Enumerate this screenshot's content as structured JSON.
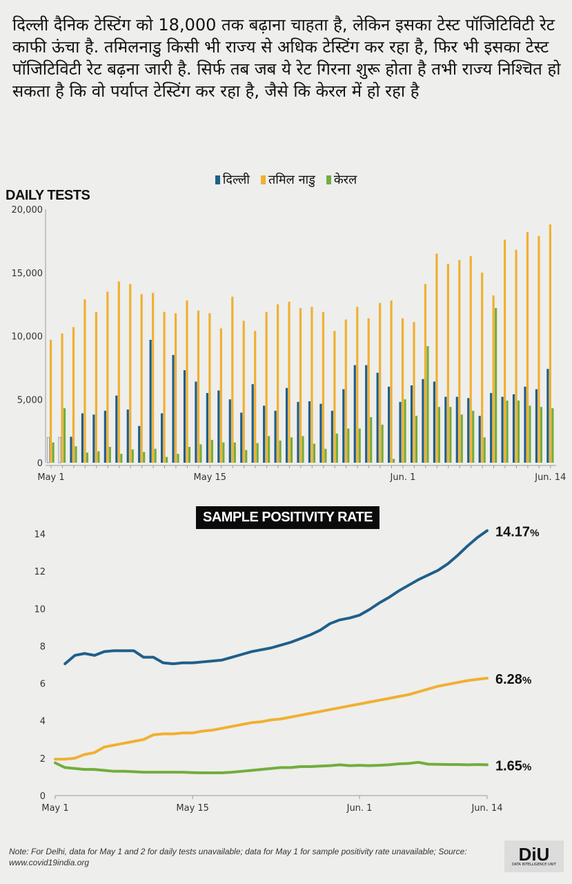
{
  "headline": "दिल्ली दैनिक टेस्टिंग को 18,000 तक बढ़ाना चाहता है, लेकिन इसका टेस्ट पॉजिटिविटी रेट काफी ऊंचा है. तमिलनाडु किसी भी राज्य से अधिक टेस्टिंग कर रहा है, फिर भी इसका टेस्ट पॉजिटिविटी रेट बढ़ना जारी है. सिर्फ तब जब ये रेट गिरना शुरू होता है तभी राज्य निश्चित हो सकता है कि वो पर्याप्त टेस्टिंग कर रहा है, जैसे कि केरल में हो रहा है",
  "legend": [
    {
      "name": "दिल्ली",
      "color": "#1f5f8b"
    },
    {
      "name": "तमिल नाडु",
      "color": "#f0b030"
    },
    {
      "name": "केरल",
      "color": "#72ad3e"
    }
  ],
  "note": "Note: For Delhi, data for May 1 and 2 for daily tests unavailable; data for May 1 for sample positivity rate unavailable; Source: www.covid19india.org",
  "logo": {
    "text": "DiU",
    "subtitle": "DATA INTELLIGENCE UNIT"
  },
  "chart_data": [
    {
      "type": "bar",
      "title": "DAILY TESTS",
      "ylim": [
        0,
        20000
      ],
      "yticks": [
        "0",
        "5,000",
        "10,000",
        "15,000",
        "20,000"
      ],
      "ytick_values": [
        0,
        5000,
        10000,
        15000,
        20000
      ],
      "xtick_labels": [
        "May 1",
        "May 15",
        "Jun. 1",
        "Jun. 14"
      ],
      "xtick_index": [
        0,
        14,
        31,
        44
      ],
      "categories_count": 45,
      "series": [
        {
          "name": "दिल्ली",
          "values": [
            null,
            null,
            2050,
            3900,
            3800,
            4100,
            5300,
            4200,
            2900,
            9700,
            3900,
            8500,
            7300,
            6400,
            5500,
            5700,
            5000,
            3950,
            6200,
            4500,
            4100,
            5900,
            4800,
            4850,
            4650,
            4100,
            5800,
            7700,
            7700,
            7100,
            6000,
            4800,
            6100,
            6600,
            6400,
            5200,
            5200,
            5100,
            3700,
            5500,
            5200,
            5400,
            6000,
            5800,
            7400
          ]
        },
        {
          "name": "तमिल नाडु",
          "values": [
            9700,
            10200,
            10700,
            12900,
            11900,
            13500,
            14300,
            14100,
            13300,
            13400,
            11900,
            11800,
            12800,
            12000,
            11800,
            10600,
            13100,
            11200,
            10400,
            11900,
            12500,
            12700,
            12200,
            12300,
            11900,
            10400,
            11300,
            12300,
            11400,
            12600,
            12800,
            11400,
            11100,
            14100,
            16500,
            15700,
            16000,
            16300,
            15000,
            13200,
            17600,
            16800,
            18200,
            17900,
            18800
          ]
        },
        {
          "name": "केरल",
          "values": [
            1600,
            4300,
            1300,
            800,
            900,
            1250,
            700,
            1050,
            850,
            1100,
            450,
            700,
            1250,
            1450,
            1800,
            1600,
            1600,
            1000,
            1550,
            2100,
            1750,
            2000,
            2100,
            1500,
            1100,
            2300,
            2700,
            2700,
            3600,
            3000,
            300,
            5000,
            3700,
            9200,
            4400,
            4400,
            3800,
            4100,
            2000,
            12200,
            4900,
            4900,
            4500,
            4400,
            4300
          ]
        }
      ]
    },
    {
      "type": "line",
      "title": "SAMPLE POSITIVITY RATE",
      "ylim": [
        0,
        14
      ],
      "yticks": [
        "0",
        "2",
        "4",
        "6",
        "8",
        "10",
        "12",
        "14"
      ],
      "ytick_values": [
        0,
        2,
        4,
        6,
        8,
        10,
        12,
        14
      ],
      "xtick_labels": [
        "May 1",
        "May 15",
        "Jun. 1",
        "Jun. 14"
      ],
      "xtick_index": [
        0,
        14,
        31,
        44
      ],
      "series": [
        {
          "name": "दिल्ली",
          "end_label": "14.17",
          "unit": "%",
          "values": [
            null,
            7.05,
            7.5,
            7.6,
            7.5,
            7.7,
            7.75,
            7.75,
            7.75,
            7.4,
            7.4,
            7.1,
            7.05,
            7.1,
            7.1,
            7.15,
            7.2,
            7.25,
            7.4,
            7.55,
            7.7,
            7.8,
            7.9,
            8.05,
            8.2,
            8.4,
            8.6,
            8.85,
            9.2,
            9.4,
            9.5,
            9.65,
            9.95,
            10.3,
            10.6,
            10.95,
            11.25,
            11.55,
            11.8,
            12.05,
            12.4,
            12.85,
            13.35,
            13.8,
            14.17
          ]
        },
        {
          "name": "तमिल नाडु",
          "end_label": "6.28",
          "unit": "%",
          "values": [
            1.95,
            1.95,
            2.0,
            2.2,
            2.3,
            2.6,
            2.7,
            2.8,
            2.9,
            3.0,
            3.25,
            3.3,
            3.3,
            3.35,
            3.35,
            3.45,
            3.5,
            3.6,
            3.7,
            3.8,
            3.9,
            3.95,
            4.05,
            4.1,
            4.2,
            4.3,
            4.4,
            4.5,
            4.6,
            4.7,
            4.8,
            4.9,
            5.0,
            5.1,
            5.2,
            5.3,
            5.4,
            5.55,
            5.7,
            5.85,
            5.95,
            6.05,
            6.15,
            6.22,
            6.28
          ]
        },
        {
          "name": "केरल",
          "end_label": "1.65",
          "unit": "%",
          "values": [
            1.75,
            1.5,
            1.45,
            1.4,
            1.4,
            1.35,
            1.3,
            1.3,
            1.28,
            1.25,
            1.25,
            1.25,
            1.25,
            1.25,
            1.23,
            1.22,
            1.22,
            1.22,
            1.25,
            1.3,
            1.35,
            1.4,
            1.45,
            1.5,
            1.5,
            1.55,
            1.55,
            1.58,
            1.6,
            1.65,
            1.6,
            1.62,
            1.6,
            1.62,
            1.65,
            1.7,
            1.72,
            1.78,
            1.68,
            1.67,
            1.66,
            1.66,
            1.65,
            1.66,
            1.65
          ]
        }
      ]
    }
  ]
}
